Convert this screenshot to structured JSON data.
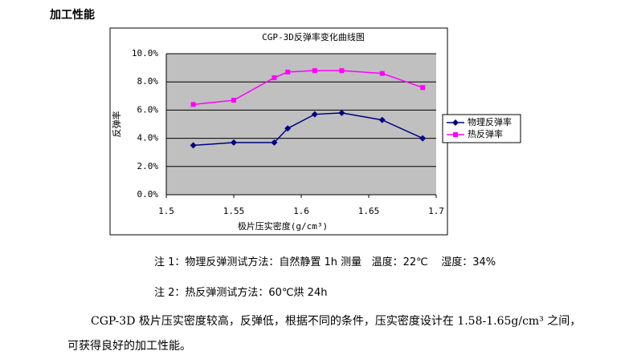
{
  "heading": "加工性能",
  "chart_data": {
    "type": "line",
    "title": "CGP-3D反弹率变化曲线图",
    "x_label": "极片压实密度(g/cm³)",
    "y_label": "反弹率",
    "x": [
      1.52,
      1.55,
      1.58,
      1.59,
      1.61,
      1.63,
      1.66,
      1.69
    ],
    "series": [
      {
        "name": "物理反弹率",
        "color": "#000080",
        "marker": "diamond",
        "values": [
          3.5,
          3.7,
          3.7,
          4.7,
          5.7,
          5.8,
          5.3,
          4.0
        ]
      },
      {
        "name": "热反弹率",
        "color": "#ff00ff",
        "marker": "square",
        "values": [
          6.4,
          6.7,
          8.3,
          8.7,
          8.8,
          8.8,
          8.6,
          7.6
        ]
      }
    ],
    "xlim": [
      1.5,
      1.7
    ],
    "xticks": [
      1.5,
      1.55,
      1.6,
      1.65,
      1.7
    ],
    "ylim": [
      0,
      10
    ],
    "yticks": [
      {
        "value": 0,
        "label": "0.0%"
      },
      {
        "value": 2,
        "label": "2.0%"
      },
      {
        "value": 4,
        "label": "4.0%"
      },
      {
        "value": 6,
        "label": "6.0%"
      },
      {
        "value": 8,
        "label": "8.0%"
      },
      {
        "value": 10,
        "label": "10.0%"
      }
    ],
    "grid": true,
    "legend": "right",
    "plot_background": "#c0c0c0"
  },
  "notes": [
    "注 1：物理反弹测试方法：自然静置 1h 测量   温度：22℃    湿度：34%",
    "注 2：热反弹测试方法：60℃烘 24h"
  ],
  "paragraph": "CGP-3D 极片压实密度较高，反弹低，根据不同的条件，压实密度设计在 1.58-1.65g/cm³ 之间，可获得良好的加工性能。"
}
